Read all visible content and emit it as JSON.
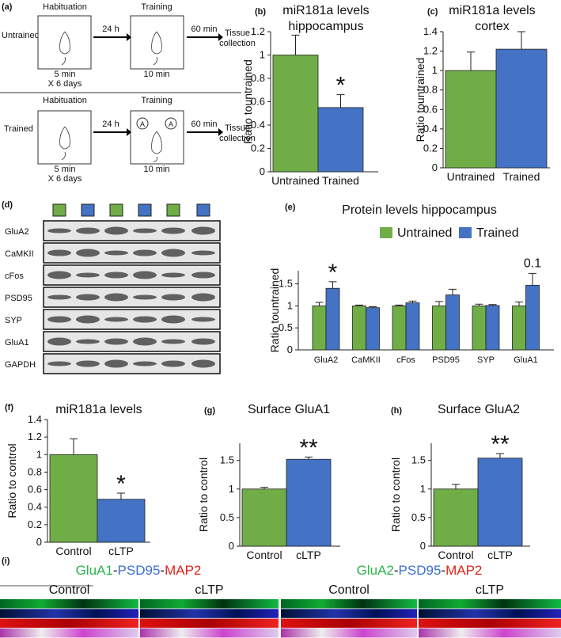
{
  "chart_data": [
    {
      "type": "bar",
      "panel": "(b)",
      "title": [
        "miR181a levels",
        "hippocampus"
      ],
      "ylabel": "Ratio tountrained",
      "categories": [
        "Untrained",
        "Trained"
      ],
      "values": [
        1,
        0.55
      ],
      "errors": [
        0.17,
        0.11
      ],
      "colors": [
        "#70ad47",
        "#4472c4"
      ],
      "ylim": [
        0,
        1.2
      ],
      "yticks": [
        0,
        0.2,
        0.4,
        0.6,
        0.8,
        1,
        1.2
      ],
      "annotations": [
        {
          "text": "*",
          "category": "Trained"
        }
      ]
    },
    {
      "type": "bar",
      "panel": "(c)",
      "title": [
        "miR181a levels",
        "cortex"
      ],
      "ylabel": "Ratio tountrained",
      "categories": [
        "Untrained",
        "Trained"
      ],
      "values": [
        1,
        1.22
      ],
      "errors": [
        0.19,
        0.18
      ],
      "colors": [
        "#70ad47",
        "#4472c4"
      ],
      "ylim": [
        0,
        1.4
      ],
      "yticks": [
        0,
        0.2,
        0.4,
        0.6,
        0.8,
        1,
        1.2,
        1.4
      ],
      "annotations": []
    },
    {
      "type": "bar",
      "panel": "(e)",
      "title": [
        "Protein levels hippocampus"
      ],
      "ylabel": "Ratio tountrained",
      "categories": [
        "GluA2",
        "CaMKII",
        "cFos",
        "PSD95",
        "SYP",
        "GluA1"
      ],
      "series": [
        {
          "name": "Untrained",
          "color": "#70ad47",
          "values": [
            1,
            1,
            1,
            1,
            1,
            1
          ],
          "errors": [
            0.08,
            0.02,
            0.02,
            0.1,
            0.04,
            0.09
          ]
        },
        {
          "name": "Trained",
          "color": "#4472c4",
          "values": [
            1.4,
            0.96,
            1.07,
            1.25,
            1.01,
            1.47
          ],
          "errors": [
            0.15,
            0.02,
            0.04,
            0.13,
            0.02,
            0.27
          ]
        }
      ],
      "ylim": [
        0,
        1.8
      ],
      "yticks": [
        0,
        0.5,
        1,
        1.5
      ],
      "legend": "top-right",
      "annotations": [
        {
          "text": "*",
          "category": "GluA2"
        },
        {
          "text": "0.1",
          "category": "GluA1"
        }
      ]
    },
    {
      "type": "bar",
      "panel": "(f)",
      "title": [
        "miR181a levels"
      ],
      "ylabel": "Ratio to control",
      "categories": [
        "Control",
        "cLTP"
      ],
      "values": [
        1,
        0.49
      ],
      "errors": [
        0.18,
        0.07
      ],
      "colors": [
        "#70ad47",
        "#4472c4"
      ],
      "ylim": [
        0,
        1.4
      ],
      "yticks": [
        0,
        0.2,
        0.4,
        0.6,
        0.8,
        1,
        1.2,
        1.4
      ],
      "annotations": [
        {
          "text": "*",
          "category": "cLTP"
        }
      ]
    },
    {
      "type": "bar",
      "panel": "(g)",
      "title": [
        "Surface GluA1"
      ],
      "ylabel": "Ratio to control",
      "categories": [
        "Control",
        "cLTP"
      ],
      "values": [
        1,
        1.52
      ],
      "errors": [
        0.03,
        0.04
      ],
      "colors": [
        "#70ad47",
        "#4472c4"
      ],
      "ylim": [
        0,
        1.8
      ],
      "yticks": [
        0,
        0.5,
        1,
        1.5
      ],
      "annotations": [
        {
          "text": "**",
          "category": "cLTP"
        }
      ]
    },
    {
      "type": "bar",
      "panel": "(h)",
      "title": [
        "Surface GluA2"
      ],
      "ylabel": "Ratio to control",
      "categories": [
        "Control",
        "cLTP"
      ],
      "values": [
        1,
        1.54
      ],
      "errors": [
        0.08,
        0.08
      ],
      "colors": [
        "#70ad47",
        "#4472c4"
      ],
      "ylim": [
        0,
        1.8
      ],
      "yticks": [
        0,
        0.5,
        1,
        1.5
      ],
      "annotations": [
        {
          "text": "**",
          "category": "cLTP"
        }
      ]
    }
  ],
  "diagram": {
    "panel": "(a)",
    "rows": [
      "Untrained",
      "Trained"
    ],
    "habituation": "Habituation",
    "training": "Training",
    "delay": "24 h",
    "wait": "60 min",
    "end": [
      "Tissue",
      "collection"
    ],
    "hab_time": "5 min",
    "hab_repeat": "X 6 days",
    "train_time": "10 min",
    "object": "A"
  },
  "blot": {
    "panel": "(d)",
    "proteins": [
      "GluA2",
      "CaMKII",
      "cFos",
      "PSD95",
      "SYP",
      "GluA1",
      "GAPDH"
    ]
  },
  "images": {
    "panel": "(i)",
    "titles": [
      [
        {
          "text": "GluA1",
          "color": "#2bb34b"
        },
        {
          "text": "-",
          "color": "#111111"
        },
        {
          "text": "PSD95",
          "color": "#3b6fd0"
        },
        {
          "text": "-",
          "color": "#111111"
        },
        {
          "text": "MAP2",
          "color": "#e0241b"
        }
      ],
      [
        {
          "text": "GluA2",
          "color": "#2bb34b"
        },
        {
          "text": "-",
          "color": "#111111"
        },
        {
          "text": "PSD95",
          "color": "#3b6fd0"
        },
        {
          "text": "-",
          "color": "#111111"
        },
        {
          "text": "MAP2",
          "color": "#e0241b"
        }
      ]
    ],
    "conditions": [
      "Control",
      "cLTP",
      "Control",
      "cLTP"
    ]
  }
}
